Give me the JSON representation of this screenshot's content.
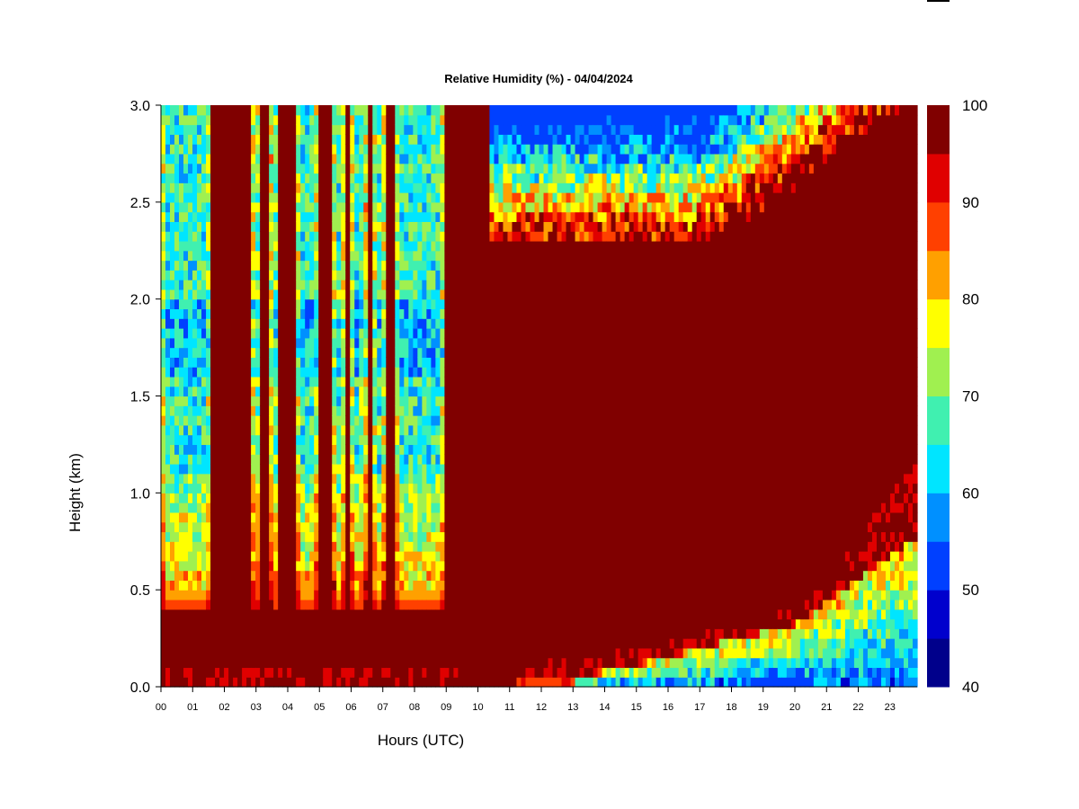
{
  "chart_data": {
    "type": "heatmap",
    "title": "Relative Humidity (%) - 04/04/2024",
    "xlabel": "Hours (UTC)",
    "ylabel": "Height (km)",
    "xlim": [
      0,
      24
    ],
    "ylim": [
      0.0,
      3.0
    ],
    "x_ticks": [
      "00",
      "01",
      "02",
      "03",
      "04",
      "05",
      "06",
      "07",
      "08",
      "09",
      "10",
      "11",
      "12",
      "13",
      "14",
      "15",
      "16",
      "17",
      "18",
      "19",
      "20",
      "21",
      "22",
      "23"
    ],
    "y_ticks": [
      "0.0",
      "0.5",
      "1.0",
      "1.5",
      "2.0",
      "2.5",
      "3.0"
    ],
    "colorbar": {
      "label_values": [
        "40",
        "50",
        "60",
        "70",
        "80",
        "90",
        "100"
      ],
      "levels": [
        40,
        45,
        50,
        55,
        60,
        65,
        70,
        75,
        80,
        85,
        90,
        95,
        100
      ],
      "colors": [
        "#00008b",
        "#0000cd",
        "#0040ff",
        "#0090ff",
        "#00e5ff",
        "#40f0b0",
        "#a0f050",
        "#ffff00",
        "#ffa000",
        "#ff4000",
        "#e00000",
        "#800000"
      ]
    },
    "z_description_profiles": {
      "columns_hours": [
        0.0,
        0.5,
        1.0,
        1.5,
        2.0,
        3.0,
        3.5,
        4.0,
        4.5,
        5.0,
        5.5,
        6.0,
        7.0,
        7.5,
        8.0,
        8.5,
        9.0,
        9.5,
        10.5,
        11.5,
        12.5,
        13.5,
        14.5,
        15.5,
        16.5,
        17.5,
        18.5,
        19.5,
        20.5,
        21.5,
        22.5,
        23.5
      ],
      "note_rows_km": [
        0.0,
        0.1,
        0.2,
        0.3,
        0.4,
        0.5,
        0.7,
        1.0,
        1.5,
        1.8,
        2.0,
        2.3,
        2.5,
        2.7,
        3.0
      ]
    }
  }
}
